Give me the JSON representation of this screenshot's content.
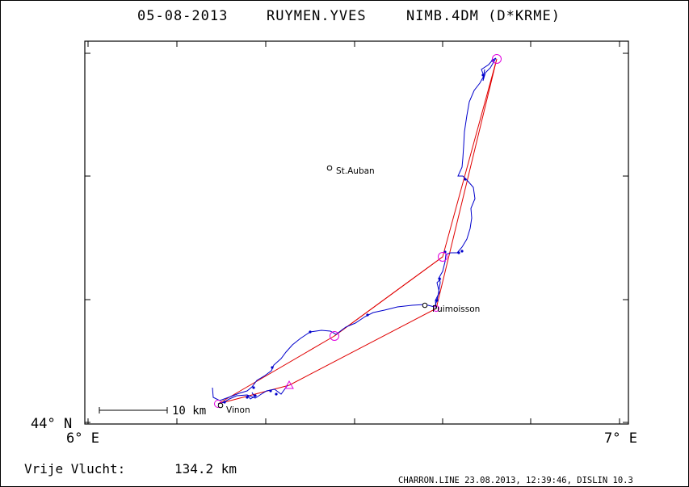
{
  "header": {
    "date": "05-08-2013",
    "pilot": "RUYMEN.YVES",
    "glider": "NIMB.4DM (D*KRME)"
  },
  "axes": {
    "lat_label": "44° N",
    "lon_left_label": "6° E",
    "lon_right_label": "7° E"
  },
  "places": [
    {
      "name": "St.Auban"
    },
    {
      "name": "Puimoisson"
    },
    {
      "name": "Vinon"
    }
  ],
  "scale_bar": {
    "label": "10 km"
  },
  "flight": {
    "label": "Vrije Vlucht:",
    "distance": "134.2 km"
  },
  "footer": {
    "text": "CHARRON.LINE 23.08.2013, 12:39:46, DISLIN 10.3"
  },
  "colors": {
    "track": "#0000cc",
    "task": "#e00000",
    "turnpoint": "#e000e0"
  }
}
